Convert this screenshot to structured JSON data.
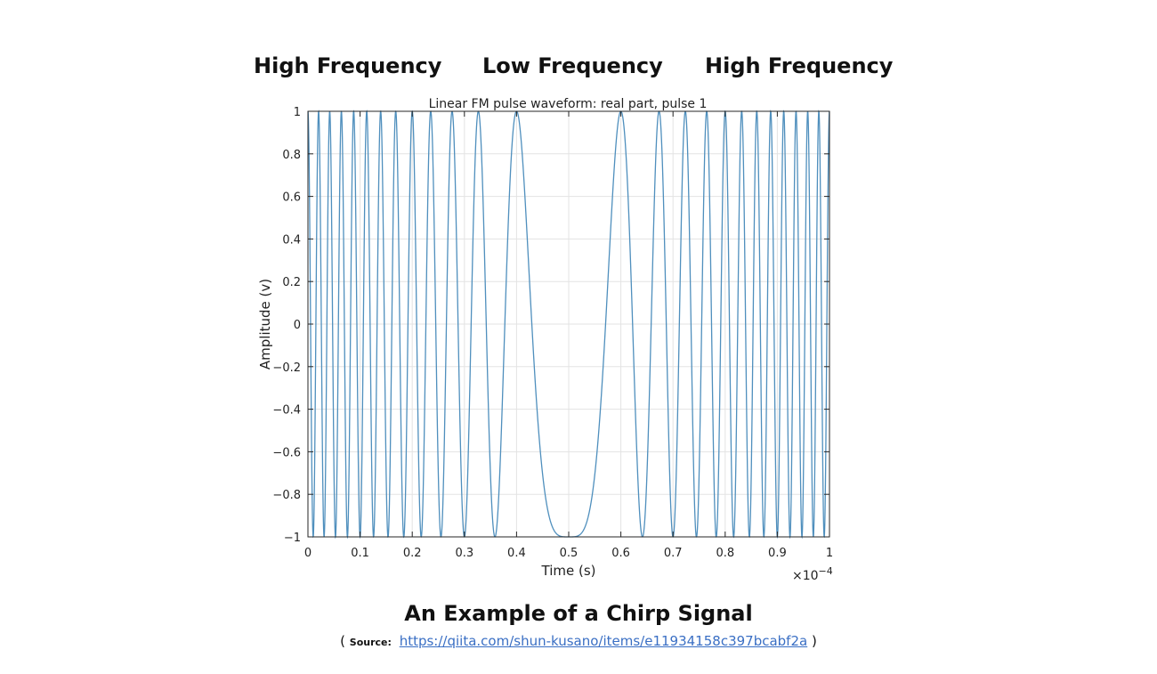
{
  "annotations": {
    "left": "High Frequency",
    "middle": "Low Frequency",
    "right": "High Frequency"
  },
  "caption": "An Example of a Chirp Signal",
  "source": {
    "open": "(",
    "label": "Source:",
    "url": "https://qiita.com/shun-kusano/items/e11934158c397bcabf2a",
    "close": ")"
  },
  "chart_data": {
    "type": "line",
    "title": "Linear FM pulse waveform: real part, pulse 1",
    "xlabel": "Time (s)",
    "ylabel": "Amplitude (v)",
    "x_multiplier_label": "×10",
    "x_multiplier_exponent": "−4",
    "xlim": [
      0,
      1
    ],
    "ylim": [
      -1,
      1
    ],
    "x_ticks": [
      0,
      0.1,
      0.2,
      0.3,
      0.4,
      0.5,
      0.6,
      0.7,
      0.8,
      0.9,
      1
    ],
    "x_tick_labels": [
      "0",
      "0.1",
      "0.2",
      "0.3",
      "0.4",
      "0.5",
      "0.6",
      "0.7",
      "0.8",
      "0.9",
      "1"
    ],
    "y_ticks": [
      1,
      0.8,
      0.6,
      0.4,
      0.2,
      0,
      -0.2,
      -0.4,
      -0.6,
      -0.8,
      -1
    ],
    "y_tick_labels": [
      "1",
      "0.8",
      "0.6",
      "0.4",
      "0.2",
      "0",
      "−0.2",
      "−0.4",
      "−0.6",
      "−0.8",
      "−1"
    ],
    "grid": true,
    "line_color": "#4f8fbd",
    "series": [
      {
        "function": "cos",
        "peak_times": [
          0.4,
          0.6
        ],
        "trough_time": 0.5,
        "sweep_span_cycles": 25.5
      }
    ]
  }
}
